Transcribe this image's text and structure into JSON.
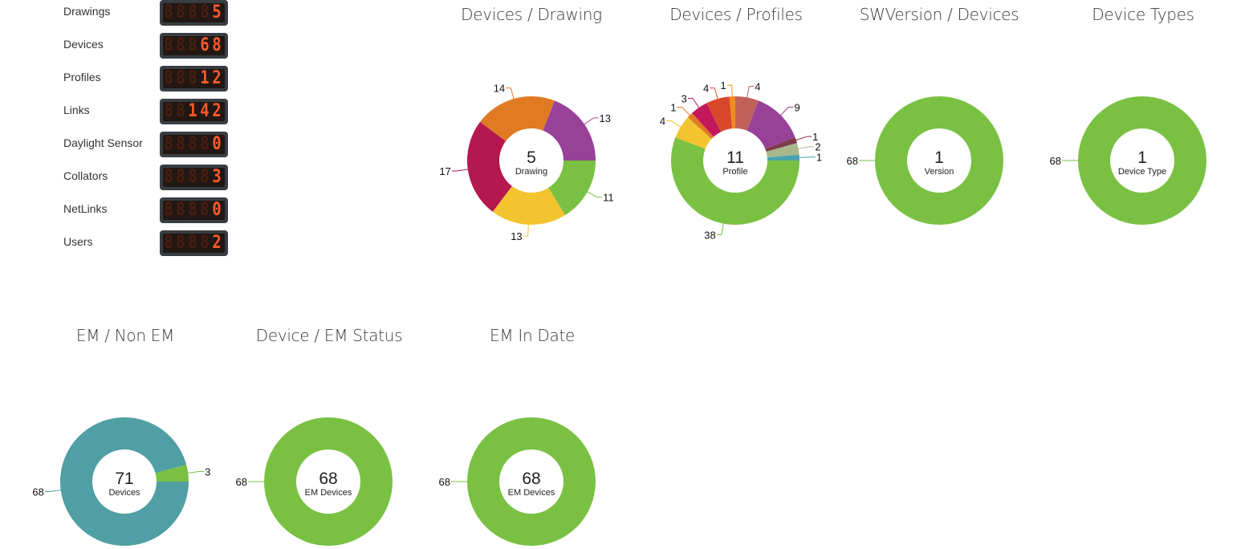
{
  "stats": [
    {
      "label": "Drawings",
      "value": "5"
    },
    {
      "label": "Devices",
      "value": "68"
    },
    {
      "label": "Profiles",
      "value": "12"
    },
    {
      "label": "Links",
      "value": "142"
    },
    {
      "label": "Daylight Sensor",
      "value": "0"
    },
    {
      "label": "Collators",
      "value": "3"
    },
    {
      "label": "NetLinks",
      "value": "0"
    },
    {
      "label": "Users",
      "value": "2"
    }
  ],
  "colors": {
    "green": "#7ac143",
    "yellow": "#f4c430",
    "crimson": "#b5184f",
    "orange": "#e07b24",
    "purple": "#984199",
    "teal": "#509fa4",
    "led_on": "#ff5a2a",
    "led_off": "#4a1d10"
  },
  "chart_data": [
    {
      "type": "pie",
      "title": "Devices / Drawing",
      "center_value": "5",
      "center_label": "Drawing",
      "values": [
        11,
        13,
        17,
        14,
        13
      ],
      "colors": [
        "#7ac143",
        "#f4c430",
        "#b5184f",
        "#e07b24",
        "#984199"
      ],
      "labels": [
        "11",
        "13",
        "17",
        "14",
        "13"
      ]
    },
    {
      "type": "pie",
      "title": "Devices / Profiles",
      "center_value": "11",
      "center_label": "Profile",
      "values": [
        38,
        4,
        1,
        3,
        4,
        1,
        4,
        9,
        1,
        2,
        1
      ],
      "colors": [
        "#7ac143",
        "#f4c430",
        "#e07b24",
        "#c2185b",
        "#d9472b",
        "#f08c1e",
        "#c0625a",
        "#984199",
        "#7d3b4a",
        "#a7b88c",
        "#4aa3b0"
      ],
      "labels": [
        "38",
        "4",
        "1",
        "3",
        "4",
        "1",
        "4",
        "9",
        "1",
        "2",
        "1"
      ]
    },
    {
      "type": "pie",
      "title": "SWVersion / Devices",
      "center_value": "1",
      "center_label": "Version",
      "values": [
        68
      ],
      "colors": [
        "#7ac143"
      ],
      "labels": [
        "68"
      ]
    },
    {
      "type": "pie",
      "title": "Device Types",
      "center_value": "1",
      "center_label": "Device Type",
      "values": [
        68
      ],
      "colors": [
        "#7ac143"
      ],
      "labels": [
        "68"
      ]
    },
    {
      "type": "pie",
      "title": "EM / Non EM",
      "center_value": "71",
      "center_label": "Devices",
      "values": [
        68,
        3
      ],
      "colors": [
        "#509fa4",
        "#7ac143"
      ],
      "labels": [
        "68",
        "3"
      ]
    },
    {
      "type": "pie",
      "title": "Device / EM Status",
      "center_value": "68",
      "center_label": "EM Devices",
      "values": [
        68
      ],
      "colors": [
        "#7ac143"
      ],
      "labels": [
        "68"
      ]
    },
    {
      "type": "pie",
      "title": "EM In Date",
      "center_value": "68",
      "center_label": "EM Devices",
      "values": [
        68
      ],
      "colors": [
        "#7ac143"
      ],
      "labels": [
        "68"
      ]
    }
  ]
}
